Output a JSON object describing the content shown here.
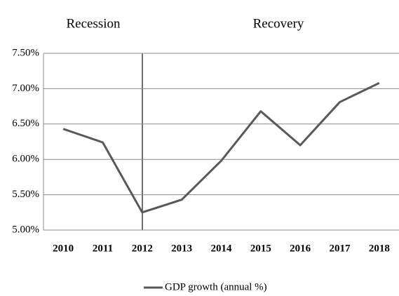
{
  "chart_data": {
    "type": "line",
    "annotations": [
      "Recession",
      "Recovery"
    ],
    "categories": [
      "2010",
      "2011",
      "2012",
      "2013",
      "2014",
      "2015",
      "2016",
      "2017",
      "2018"
    ],
    "series": [
      {
        "name": "GDP growth (annual %)",
        "color": "#595959",
        "values": [
          6.43,
          6.24,
          5.25,
          5.43,
          5.98,
          6.68,
          6.2,
          6.81,
          7.08
        ]
      }
    ],
    "ylim": [
      5.0,
      7.5
    ],
    "yticks": [
      {
        "value": 5.0,
        "label": "5.00%"
      },
      {
        "value": 5.5,
        "label": "5.50%"
      },
      {
        "value": 6.0,
        "label": "6.00%"
      },
      {
        "value": 6.5,
        "label": "6.50%"
      },
      {
        "value": 7.0,
        "label": "7.00%"
      },
      {
        "value": 7.5,
        "label": "7.50%"
      }
    ],
    "grid": true,
    "legend": "bottom"
  }
}
